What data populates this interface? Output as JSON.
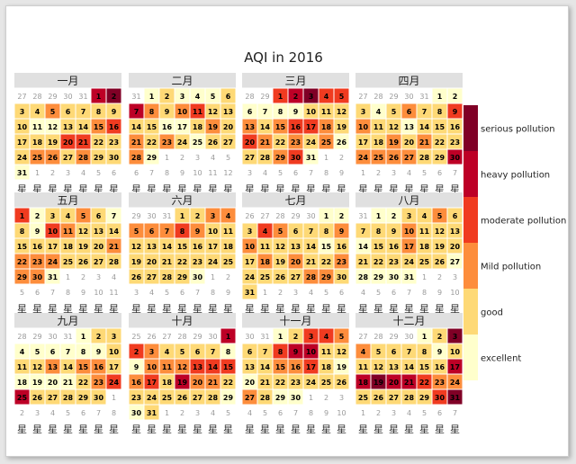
{
  "chart_data": {
    "type": "heatmap",
    "title": "AQI in 2016",
    "year": 2016,
    "week_label": "星",
    "legend": {
      "categories": [
        {
          "level": 6,
          "label": "serious pollution",
          "color": "#800026"
        },
        {
          "level": 5,
          "label": "heavy pollution",
          "color": "#bd0026"
        },
        {
          "level": 4,
          "label": "moderate pollution",
          "color": "#f03b20"
        },
        {
          "level": 3,
          "label": "Mild pollution",
          "color": "#fd8d3c"
        },
        {
          "level": 2,
          "label": "good",
          "color": "#fed976"
        },
        {
          "level": 1,
          "label": "excellent",
          "color": "#ffffcc"
        }
      ]
    },
    "months": [
      {
        "label": "一月",
        "levels": [
          5,
          6,
          2,
          2,
          3,
          2,
          2,
          2,
          2,
          2,
          1,
          1,
          2,
          2,
          3,
          4,
          2,
          2,
          2,
          4,
          4,
          2,
          2,
          2,
          3,
          3,
          2,
          3,
          2,
          2,
          1
        ]
      },
      {
        "label": "二月",
        "levels": [
          1,
          2,
          1,
          1,
          1,
          2,
          5,
          3,
          2,
          3,
          4,
          2,
          2,
          2,
          2,
          1,
          1,
          2,
          3,
          2,
          3,
          2,
          3,
          2,
          1,
          2,
          2,
          3,
          1
        ]
      },
      {
        "label": "三月",
        "levels": [
          4,
          5,
          6,
          4,
          4,
          1,
          1,
          1,
          1,
          2,
          2,
          2,
          3,
          2,
          3,
          4,
          4,
          3,
          2,
          4,
          3,
          2,
          3,
          2,
          3,
          1,
          2,
          2,
          3,
          4,
          1
        ]
      },
      {
        "label": "四月",
        "levels": [
          1,
          1,
          2,
          1,
          2,
          3,
          2,
          2,
          4,
          3,
          2,
          2,
          1,
          2,
          2,
          2,
          2,
          2,
          3,
          2,
          3,
          2,
          2,
          3,
          3,
          3,
          3,
          2,
          2,
          5
        ]
      },
      {
        "label": "五月",
        "levels": [
          4,
          1,
          2,
          2,
          3,
          2,
          1,
          2,
          1,
          4,
          3,
          2,
          2,
          2,
          2,
          2,
          2,
          2,
          2,
          2,
          3,
          3,
          3,
          3,
          2,
          2,
          2,
          2,
          3,
          3,
          1
        ]
      },
      {
        "label": "六月",
        "levels": [
          2,
          2,
          3,
          3,
          3,
          3,
          3,
          4,
          3,
          2,
          2,
          2,
          2,
          2,
          2,
          2,
          2,
          2,
          2,
          2,
          2,
          2,
          2,
          2,
          2,
          2,
          2,
          2,
          2,
          1
        ]
      },
      {
        "label": "七月",
        "levels": [
          1,
          1,
          2,
          4,
          3,
          2,
          2,
          2,
          3,
          3,
          2,
          2,
          2,
          2,
          1,
          2,
          2,
          3,
          2,
          3,
          2,
          2,
          3,
          2,
          2,
          2,
          2,
          3,
          3,
          2,
          2
        ]
      },
      {
        "label": "八月",
        "levels": [
          1,
          1,
          2,
          2,
          3,
          2,
          2,
          2,
          2,
          3,
          2,
          2,
          2,
          1,
          2,
          2,
          3,
          2,
          2,
          2,
          2,
          2,
          2,
          2,
          2,
          2,
          1,
          1,
          1,
          1,
          1
        ]
      },
      {
        "label": "九月",
        "levels": [
          1,
          2,
          2,
          1,
          1,
          1,
          1,
          1,
          1,
          2,
          2,
          2,
          3,
          2,
          3,
          3,
          2,
          1,
          1,
          1,
          1,
          2,
          3,
          4,
          5,
          2,
          2,
          2,
          2,
          2
        ]
      },
      {
        "label": "十月",
        "levels": [
          5,
          4,
          3,
          2,
          2,
          2,
          2,
          1,
          1,
          3,
          3,
          3,
          4,
          4,
          4,
          3,
          4,
          2,
          5,
          3,
          3,
          2,
          2,
          2,
          2,
          2,
          2,
          2,
          1,
          1,
          2
        ]
      },
      {
        "label": "十一月",
        "levels": [
          1,
          2,
          4,
          4,
          3,
          2,
          2,
          4,
          5,
          5,
          2,
          2,
          2,
          2,
          3,
          3,
          4,
          2,
          1,
          1,
          2,
          2,
          2,
          2,
          2,
          2,
          3,
          2,
          1,
          1
        ]
      },
      {
        "label": "十二月",
        "levels": [
          1,
          2,
          6,
          3,
          2,
          2,
          2,
          2,
          1,
          2,
          2,
          2,
          2,
          2,
          2,
          2,
          5,
          5,
          6,
          5,
          5,
          4,
          3,
          3,
          2,
          2,
          2,
          2,
          2,
          4,
          6
        ]
      }
    ]
  }
}
